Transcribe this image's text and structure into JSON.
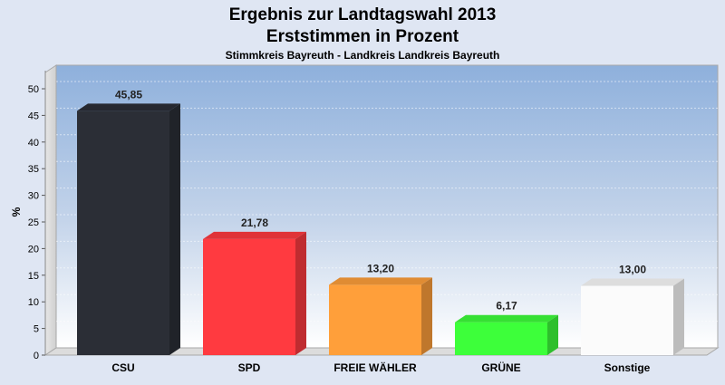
{
  "chart_data": {
    "type": "bar",
    "title": "Ergebnis zur Landtagswahl 2013",
    "subtitle": "Erststimmen in Prozent",
    "subsubtitle": "Stimmkreis Bayreuth - Landkreis Landkreis Bayreuth",
    "ylabel": "%",
    "xlabel": "",
    "ylim": [
      0,
      50
    ],
    "yticks": [
      "0",
      "5",
      "10",
      "15",
      "20",
      "25",
      "30",
      "35",
      "40",
      "45",
      "50"
    ],
    "categories": [
      "CSU",
      "SPD",
      "FREIE WÄHLER",
      "GRÜNE",
      "Sonstige"
    ],
    "values": [
      45.85,
      21.78,
      13.2,
      6.17,
      13.0
    ],
    "value_labels": [
      "45,85",
      "21,78",
      "13,20",
      "6,17",
      "13,00"
    ],
    "colors": [
      "#2b2e36",
      "#ff3a40",
      "#ff9f3a",
      "#3dff3a",
      "#fbfbfb"
    ],
    "grid": true,
    "legend": "none"
  }
}
